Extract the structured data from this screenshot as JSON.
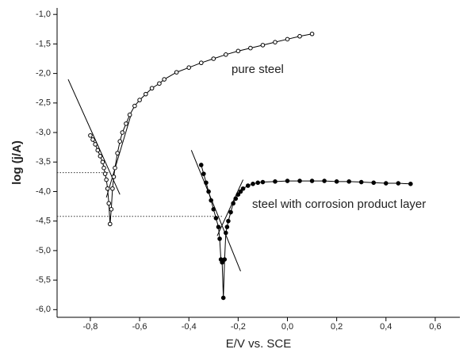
{
  "chart_data": {
    "type": "scatter",
    "xlabel": "E/V vs. SCE",
    "ylabel": "log (j/A)",
    "xlim": [
      -0.935,
      0.7
    ],
    "ylim": [
      -6.13,
      -0.89
    ],
    "xticks": [
      {
        "value": -0.8,
        "label": "-0,8"
      },
      {
        "value": -0.6,
        "label": "-0,6"
      },
      {
        "value": -0.4,
        "label": "-0,4"
      },
      {
        "value": -0.2,
        "label": "-0,2"
      },
      {
        "value": 0,
        "label": "0,0"
      },
      {
        "value": 0.2,
        "label": "0,2"
      },
      {
        "value": 0.4,
        "label": "0,4"
      },
      {
        "value": 0.6,
        "label": "0,6"
      }
    ],
    "yticks": [
      {
        "value": -1,
        "label": "-1,0"
      },
      {
        "value": -1.5,
        "label": "-1,5"
      },
      {
        "value": -2,
        "label": "-2,0"
      },
      {
        "value": -2.5,
        "label": "-2,5"
      },
      {
        "value": -3,
        "label": "-3,0"
      },
      {
        "value": -3.5,
        "label": "-3,5"
      },
      {
        "value": -4,
        "label": "-4,0"
      },
      {
        "value": -4.5,
        "label": "-4,5"
      },
      {
        "value": -5,
        "label": "-5,0"
      },
      {
        "value": -5.5,
        "label": "-5,5"
      },
      {
        "value": -6,
        "label": "-6,0"
      }
    ],
    "annotations": [
      "pure steel",
      "steel with corrosion product layer"
    ],
    "series": [
      {
        "marker": "open",
        "color": "#000000",
        "x": [
          -0.8,
          -0.79,
          -0.78,
          -0.77,
          -0.76,
          -0.75,
          -0.745,
          -0.74,
          -0.735,
          -0.73,
          -0.725,
          -0.72,
          -0.715,
          -0.71,
          -0.705,
          -0.7,
          -0.69,
          -0.68,
          -0.67,
          -0.655,
          -0.64,
          -0.62,
          -0.6,
          -0.575,
          -0.55,
          -0.52,
          -0.5,
          -0.45,
          -0.4,
          -0.35,
          -0.3,
          -0.25,
          -0.2,
          -0.15,
          -0.1,
          -0.05,
          0,
          0.05,
          0.1
        ],
        "y": [
          -3.05,
          -3.12,
          -3.2,
          -3.3,
          -3.4,
          -3.5,
          -3.6,
          -3.7,
          -3.8,
          -3.95,
          -4.2,
          -4.55,
          -4.3,
          -3.95,
          -3.75,
          -3.6,
          -3.35,
          -3.15,
          -3.0,
          -2.85,
          -2.7,
          -2.55,
          -2.45,
          -2.35,
          -2.25,
          -2.17,
          -2.1,
          -1.98,
          -1.9,
          -1.82,
          -1.75,
          -1.68,
          -1.62,
          -1.57,
          -1.52,
          -1.47,
          -1.42,
          -1.37,
          -1.33
        ]
      },
      {
        "marker": "filled",
        "color": "#000000",
        "x": [
          -0.35,
          -0.34,
          -0.33,
          -0.32,
          -0.31,
          -0.3,
          -0.29,
          -0.28,
          -0.275,
          -0.27,
          -0.265,
          -0.26,
          -0.255,
          -0.25,
          -0.245,
          -0.24,
          -0.23,
          -0.22,
          -0.21,
          -0.2,
          -0.19,
          -0.18,
          -0.16,
          -0.14,
          -0.12,
          -0.1,
          -0.05,
          0,
          0.05,
          0.1,
          0.15,
          0.2,
          0.25,
          0.3,
          0.35,
          0.4,
          0.45,
          0.5
        ],
        "y": [
          -3.55,
          -3.7,
          -3.85,
          -4.0,
          -4.15,
          -4.3,
          -4.45,
          -4.6,
          -4.8,
          -5.15,
          -5.2,
          -5.8,
          -5.15,
          -4.7,
          -4.6,
          -4.5,
          -4.35,
          -4.2,
          -4.12,
          -4.05,
          -4.0,
          -3.95,
          -3.9,
          -3.87,
          -3.85,
          -3.84,
          -3.83,
          -3.82,
          -3.82,
          -3.82,
          -3.82,
          -3.83,
          -3.83,
          -3.84,
          -3.85,
          -3.86,
          -3.86,
          -3.87
        ]
      }
    ],
    "fit_lines": [
      {
        "x": [
          -0.89,
          -0.68
        ],
        "y": [
          -2.1,
          -4.05
        ]
      },
      {
        "x": [
          -0.735,
          -0.635
        ],
        "y": [
          -4.1,
          -2.7
        ]
      },
      {
        "x": [
          -0.39,
          -0.19
        ],
        "y": [
          -3.3,
          -5.35
        ]
      },
      {
        "x": [
          -0.285,
          -0.18
        ],
        "y": [
          -4.75,
          -3.8
        ]
      }
    ],
    "level_lines": [
      {
        "x": [
          -0.935,
          -0.72
        ],
        "y": [
          -3.68,
          -3.68
        ]
      },
      {
        "x": [
          -0.935,
          -0.26
        ],
        "y": [
          -4.42,
          -4.42
        ]
      }
    ]
  }
}
